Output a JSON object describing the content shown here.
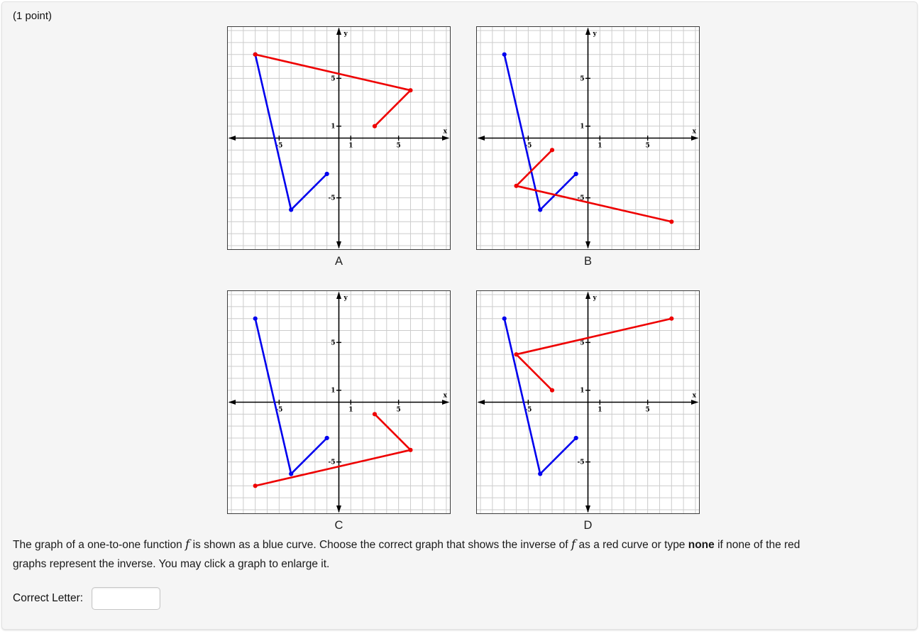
{
  "header": {
    "points": "(1 point)"
  },
  "question": {
    "segments": [
      {
        "text": "The graph of a one-to-one function "
      },
      {
        "text": "f",
        "style": "math"
      },
      {
        "text": " is shown as a blue curve. Choose the correct graph that shows the inverse of "
      },
      {
        "text": "f",
        "style": "math"
      },
      {
        "text": " as a red curve or type "
      },
      {
        "text": "none",
        "style": "bold"
      },
      {
        "text": " if none of the red",
        "style": ""
      },
      {
        "text": "",
        "style": "break"
      },
      {
        "text": "graphs represent the inverse. You may click a graph to enlarge it."
      }
    ]
  },
  "answer": {
    "label": "Correct Letter:",
    "value": ""
  },
  "colors": {
    "blue_curve": "#0000ee",
    "red_curve": "#ee0000",
    "grid": "#cccccc",
    "axis": "#000000",
    "plot_border": "#3c3c3c",
    "panel_bg": "#f5f5f5"
  },
  "chart_data": [
    {
      "label": "A",
      "type": "line",
      "xlabel": "x",
      "ylabel": "y",
      "xlim": [
        -9.3,
        9.3
      ],
      "ylim": [
        -9.3,
        9.3
      ],
      "x_ticks": [
        -5,
        1,
        5
      ],
      "y_ticks": [
        -5,
        1,
        5
      ],
      "grid": true,
      "legend": "none",
      "series": [
        {
          "name": "function-f-blue",
          "color": "#0000ee",
          "points": [
            [
              -7,
              7
            ],
            [
              -4,
              -6
            ],
            [
              -1,
              -3
            ]
          ]
        },
        {
          "name": "candidate-red",
          "color": "#ee0000",
          "points": [
            [
              -7,
              7
            ],
            [
              6,
              4
            ],
            [
              3,
              1
            ]
          ]
        }
      ]
    },
    {
      "label": "B",
      "type": "line",
      "xlabel": "x",
      "ylabel": "y",
      "xlim": [
        -9.3,
        9.3
      ],
      "ylim": [
        -9.3,
        9.3
      ],
      "x_ticks": [
        -5,
        1,
        5
      ],
      "y_ticks": [
        -5,
        1,
        5
      ],
      "grid": true,
      "legend": "none",
      "series": [
        {
          "name": "function-f-blue",
          "color": "#0000ee",
          "points": [
            [
              -7,
              7
            ],
            [
              -4,
              -6
            ],
            [
              -1,
              -3
            ]
          ]
        },
        {
          "name": "candidate-red",
          "color": "#ee0000",
          "points": [
            [
              -3,
              -1
            ],
            [
              -6,
              -4
            ],
            [
              7,
              -7
            ]
          ]
        }
      ]
    },
    {
      "label": "C",
      "type": "line",
      "xlabel": "x",
      "ylabel": "y",
      "xlim": [
        -9.3,
        9.3
      ],
      "ylim": [
        -9.3,
        9.3
      ],
      "x_ticks": [
        -5,
        1,
        5
      ],
      "y_ticks": [
        -5,
        1,
        5
      ],
      "grid": true,
      "legend": "none",
      "series": [
        {
          "name": "function-f-blue",
          "color": "#0000ee",
          "points": [
            [
              -7,
              7
            ],
            [
              -4,
              -6
            ],
            [
              -1,
              -3
            ]
          ]
        },
        {
          "name": "candidate-red",
          "color": "#ee0000",
          "points": [
            [
              3,
              -1
            ],
            [
              6,
              -4
            ],
            [
              -7,
              -7
            ]
          ]
        }
      ]
    },
    {
      "label": "D",
      "type": "line",
      "xlabel": "x",
      "ylabel": "y",
      "xlim": [
        -9.3,
        9.3
      ],
      "ylim": [
        -9.3,
        9.3
      ],
      "x_ticks": [
        -5,
        1,
        5
      ],
      "y_ticks": [
        -5,
        1,
        5
      ],
      "grid": true,
      "legend": "none",
      "series": [
        {
          "name": "function-f-blue",
          "color": "#0000ee",
          "points": [
            [
              -7,
              7
            ],
            [
              -4,
              -6
            ],
            [
              -1,
              -3
            ]
          ]
        },
        {
          "name": "candidate-red",
          "color": "#ee0000",
          "points": [
            [
              7,
              7
            ],
            [
              -6,
              4
            ],
            [
              -3,
              1
            ]
          ]
        }
      ]
    }
  ]
}
